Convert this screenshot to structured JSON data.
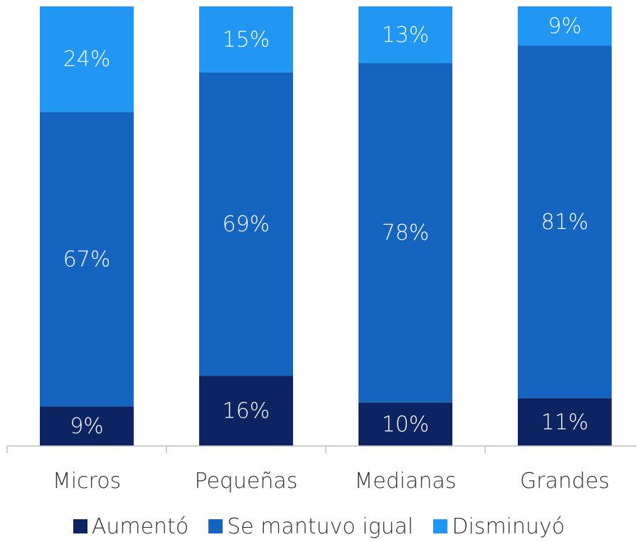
{
  "chart_data": {
    "type": "bar",
    "stacked": true,
    "categories": [
      "Micros",
      "Pequeñas",
      "Medianas",
      "Grandes"
    ],
    "series": [
      {
        "name": "Aumentó",
        "values": [
          9,
          16,
          10,
          11
        ],
        "color": "#0d2463"
      },
      {
        "name": "Se mantuvo igual",
        "values": [
          67,
          69,
          78,
          81
        ],
        "color": "#1565c0"
      },
      {
        "name": "Disminuyó",
        "values": [
          24,
          15,
          13,
          9
        ],
        "color": "#2196f3"
      }
    ],
    "data_labels": [
      [
        "9%",
        "16%",
        "10%",
        "11%"
      ],
      [
        "67%",
        "69%",
        "78%",
        "81%"
      ],
      [
        "24%",
        "15%",
        "13%",
        "9%"
      ]
    ],
    "ylim": [
      0,
      100
    ],
    "grid": false,
    "legend_position": "bottom"
  }
}
